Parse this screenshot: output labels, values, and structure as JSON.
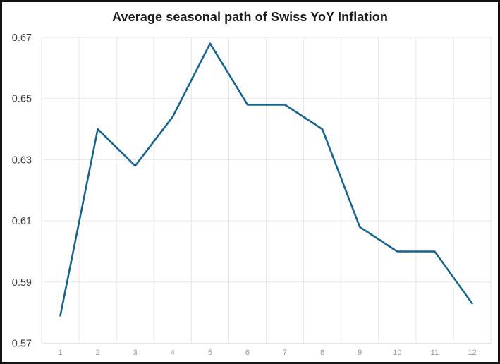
{
  "chart_data": {
    "type": "line",
    "title": "Average seasonal path of Swiss YoY Inflation",
    "categories": [
      "1",
      "2",
      "3",
      "4",
      "5",
      "6",
      "7",
      "8",
      "9",
      "10",
      "11",
      "12"
    ],
    "series": [
      {
        "name": "Average seasonal path of Swiss YoY Inflation",
        "values": [
          0.579,
          0.64,
          0.628,
          0.644,
          0.668,
          0.648,
          0.648,
          0.64,
          0.608,
          0.6,
          0.6,
          0.583
        ]
      }
    ],
    "xlabel": "",
    "ylabel": "",
    "ylim": [
      0.57,
      0.67
    ],
    "yticks": [
      0.57,
      0.59,
      0.61,
      0.63,
      0.65,
      0.67
    ],
    "ytick_labels": [
      "0.57",
      "0.59",
      "0.61",
      "0.63",
      "0.65",
      "0.67"
    ],
    "grid": true,
    "grid_style": "vertical lines at category boundaries, horizontal lines at y ticks, plot area fully framed by gridline color",
    "legend_position": "none",
    "markers": "none",
    "colors": {
      "line": "#17648F",
      "grid": "#E6E6E6",
      "ytick_label": "#3F3F3F",
      "xtick_label": "#9A9A9A",
      "title": "#1A1A1A",
      "frame": "#111111",
      "background": "#FFFFFF"
    }
  }
}
